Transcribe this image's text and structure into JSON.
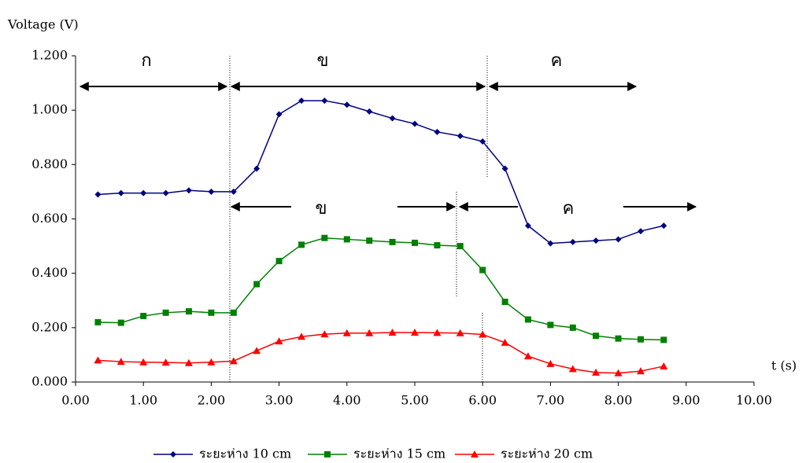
{
  "chart_data": {
    "type": "line",
    "y_label": "Voltage (V)",
    "x_label": "t (s)",
    "x": [
      0.33,
      0.67,
      1.0,
      1.33,
      1.67,
      2.0,
      2.33,
      2.67,
      3.0,
      3.33,
      3.67,
      4.0,
      4.33,
      4.67,
      5.0,
      5.33,
      5.67,
      6.0,
      6.33,
      6.67,
      7.0,
      7.33,
      7.67,
      8.0,
      8.33,
      8.67
    ],
    "series": [
      {
        "name": "ระยะห่าง 10 cm",
        "color": "#000080",
        "marker": "diamond",
        "values": [
          0.69,
          0.695,
          0.695,
          0.695,
          0.705,
          0.7,
          0.7,
          0.785,
          0.985,
          1.035,
          1.035,
          1.02,
          0.995,
          0.97,
          0.95,
          0.92,
          0.905,
          0.885,
          0.785,
          0.575,
          0.51,
          0.515,
          0.52,
          0.525,
          0.555,
          0.575
        ]
      },
      {
        "name": "ระยะห่าง 15 cm",
        "color": "#008000",
        "marker": "square",
        "values": [
          0.22,
          0.218,
          0.243,
          0.255,
          0.26,
          0.255,
          0.255,
          0.36,
          0.445,
          0.505,
          0.53,
          0.525,
          0.52,
          0.515,
          0.512,
          0.503,
          0.5,
          0.412,
          0.295,
          0.23,
          0.21,
          0.2,
          0.17,
          0.16,
          0.157,
          0.155
        ]
      },
      {
        "name": "ระยะห่าง 20 cm",
        "color": "#ff0000",
        "marker": "triangle",
        "values": [
          0.08,
          0.075,
          0.073,
          0.072,
          0.07,
          0.073,
          0.077,
          0.115,
          0.15,
          0.167,
          0.176,
          0.18,
          0.18,
          0.182,
          0.182,
          0.181,
          0.18,
          0.175,
          0.145,
          0.095,
          0.067,
          0.048,
          0.035,
          0.033,
          0.04,
          0.058
        ]
      }
    ],
    "xlim": [
      0,
      10
    ],
    "xticks": [
      {
        "value": 0,
        "label": "0.00"
      },
      {
        "value": 1,
        "label": "1.00"
      },
      {
        "value": 2,
        "label": "2.00"
      },
      {
        "value": 3,
        "label": "3.00"
      },
      {
        "value": 4,
        "label": "4.00"
      },
      {
        "value": 5,
        "label": "5.00"
      },
      {
        "value": 6,
        "label": "6.00"
      },
      {
        "value": 7,
        "label": "7.00"
      },
      {
        "value": 8,
        "label": "8.00"
      },
      {
        "value": 9,
        "label": "9.00"
      },
      {
        "value": 10,
        "label": "10.00"
      }
    ],
    "ylim": [
      0,
      1.2
    ],
    "yticks": [
      {
        "value": 0,
        "label": "0.000"
      },
      {
        "value": 0.2,
        "label": "0.200"
      },
      {
        "value": 0.4,
        "label": "0.400"
      },
      {
        "value": 0.6,
        "label": "0.600"
      },
      {
        "value": 0.8,
        "label": "0.800"
      },
      {
        "value": 1.0,
        "label": "1.000"
      },
      {
        "value": 1.2,
        "label": "1.200"
      }
    ],
    "grid": false,
    "legend": "bottom",
    "annotations": [
      "ก",
      "ข",
      "ค",
      "ข",
      "ค"
    ]
  }
}
